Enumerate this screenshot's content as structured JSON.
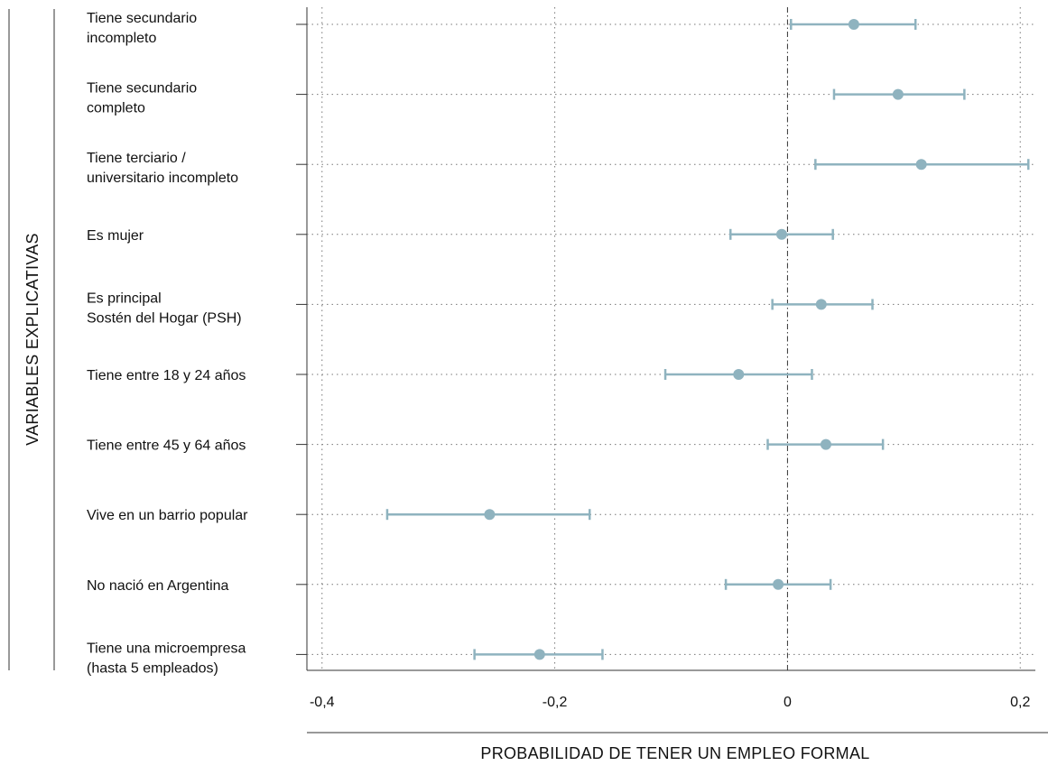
{
  "chart_data": {
    "type": "errorbar",
    "xlabel": "PROBABILIDAD DE TENER UN EMPLEO FORMAL",
    "ylabel": "VARIABLES EXPLICATIVAS",
    "xlim": [
      -0.413,
      0.213
    ],
    "xticks": [
      {
        "value": -0.4,
        "label": "-0,4"
      },
      {
        "value": -0.2,
        "label": "-0,2"
      },
      {
        "value": 0,
        "label": "0"
      },
      {
        "value": 0.2,
        "label": "0,2"
      }
    ],
    "reference_line": 0,
    "grid": true,
    "color": "#8fb3bf",
    "variables": [
      {
        "label": [
          "Tiene secundario",
          "incompleto"
        ],
        "estimate": 0.057,
        "low": 0.003,
        "high": 0.11
      },
      {
        "label": [
          "Tiene secundario",
          "completo"
        ],
        "estimate": 0.095,
        "low": 0.04,
        "high": 0.152
      },
      {
        "label": [
          "Tiene terciario /",
          "universitario incompleto"
        ],
        "estimate": 0.115,
        "low": 0.024,
        "high": 0.207
      },
      {
        "label": [
          "Es mujer"
        ],
        "estimate": -0.005,
        "low": -0.049,
        "high": 0.039
      },
      {
        "label": [
          "Es principal",
          "Sostén del Hogar (PSH)"
        ],
        "estimate": 0.029,
        "low": -0.013,
        "high": 0.073
      },
      {
        "label": [
          "Tiene entre 18 y 24 años"
        ],
        "estimate": -0.042,
        "low": -0.105,
        "high": 0.021
      },
      {
        "label": [
          "Tiene entre 45 y 64 años"
        ],
        "estimate": 0.033,
        "low": -0.017,
        "high": 0.082
      },
      {
        "label": [
          "Vive en un barrio popular"
        ],
        "estimate": -0.256,
        "low": -0.344,
        "high": -0.17
      },
      {
        "label": [
          "No nació en Argentina"
        ],
        "estimate": -0.008,
        "low": -0.053,
        "high": 0.037
      },
      {
        "label": [
          "Tiene una microempresa",
          "(hasta 5 empleados)"
        ],
        "estimate": -0.213,
        "low": -0.269,
        "high": -0.159
      }
    ]
  }
}
